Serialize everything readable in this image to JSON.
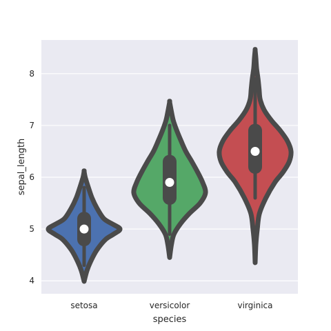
{
  "chart_data": {
    "type": "violin",
    "xlabel": "species",
    "ylabel": "sepal_length",
    "categories": [
      "setosa",
      "versicolor",
      "virginica"
    ],
    "ylim": [
      3.75,
      8.65
    ],
    "yticks": [
      4,
      5,
      6,
      7,
      8
    ],
    "grid": true,
    "background": "#EAEAF2",
    "gridColor": "#FFFFFF",
    "outlineColor": "#4A4A4A",
    "series": [
      {
        "category": "setosa",
        "color": "#4C72B0",
        "min": 4.3,
        "q1": 4.8,
        "median": 5.0,
        "q3": 5.2,
        "max": 5.8,
        "kde_ymin": 3.99,
        "kde_ymax": 6.11,
        "density": [
          [
            3.99,
            0.0
          ],
          [
            4.2,
            0.08
          ],
          [
            4.4,
            0.2
          ],
          [
            4.6,
            0.36
          ],
          [
            4.8,
            0.6
          ],
          [
            4.9,
            0.82
          ],
          [
            5.0,
            1.0
          ],
          [
            5.1,
            0.78
          ],
          [
            5.2,
            0.55
          ],
          [
            5.4,
            0.36
          ],
          [
            5.6,
            0.22
          ],
          [
            5.8,
            0.12
          ],
          [
            6.0,
            0.03
          ],
          [
            6.11,
            0.0
          ]
        ]
      },
      {
        "category": "versicolor",
        "color": "#55A868",
        "min": 4.9,
        "q1": 5.6,
        "median": 5.9,
        "q3": 6.3,
        "max": 7.0,
        "kde_ymin": 4.45,
        "kde_ymax": 7.45,
        "density": [
          [
            4.45,
            0.0
          ],
          [
            4.7,
            0.05
          ],
          [
            4.9,
            0.12
          ],
          [
            5.1,
            0.3
          ],
          [
            5.3,
            0.55
          ],
          [
            5.5,
            0.85
          ],
          [
            5.7,
            1.0
          ],
          [
            5.9,
            0.92
          ],
          [
            6.1,
            0.78
          ],
          [
            6.3,
            0.62
          ],
          [
            6.5,
            0.45
          ],
          [
            6.7,
            0.32
          ],
          [
            6.9,
            0.2
          ],
          [
            7.1,
            0.1
          ],
          [
            7.3,
            0.04
          ],
          [
            7.45,
            0.0
          ]
        ]
      },
      {
        "category": "virginica",
        "color": "#C44E52",
        "min": 5.6,
        "q1": 6.2,
        "median": 6.5,
        "q3": 6.9,
        "max": 7.9,
        "kde_ymin": 4.35,
        "kde_ymax": 8.45,
        "density": [
          [
            4.35,
            0.0
          ],
          [
            4.7,
            0.02
          ],
          [
            5.0,
            0.06
          ],
          [
            5.3,
            0.12
          ],
          [
            5.6,
            0.3
          ],
          [
            5.9,
            0.55
          ],
          [
            6.1,
            0.78
          ],
          [
            6.3,
            0.95
          ],
          [
            6.5,
            1.0
          ],
          [
            6.7,
            0.9
          ],
          [
            6.9,
            0.7
          ],
          [
            7.1,
            0.45
          ],
          [
            7.3,
            0.25
          ],
          [
            7.5,
            0.14
          ],
          [
            7.7,
            0.11
          ],
          [
            7.9,
            0.08
          ],
          [
            8.1,
            0.04
          ],
          [
            8.3,
            0.02
          ],
          [
            8.45,
            0.0
          ]
        ]
      }
    ]
  }
}
